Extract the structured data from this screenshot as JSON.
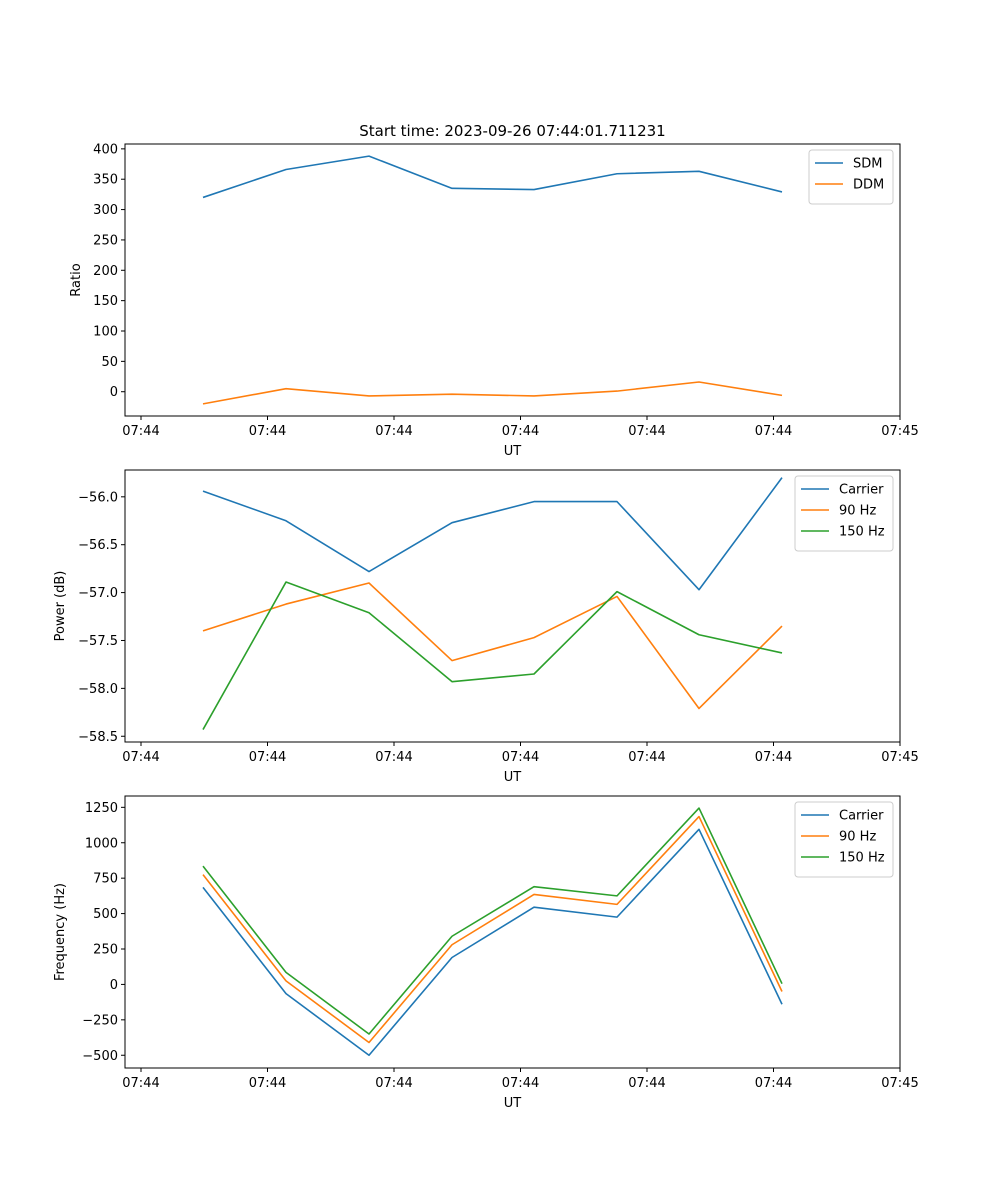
{
  "figure_title": "Start time: 2023-09-26 07:44:01.711231",
  "chart_data": [
    {
      "type": "line",
      "title": "Start time: 2023-09-26 07:44:01.711231",
      "xlabel": "UT",
      "ylabel": "Ratio",
      "x_tick_labels": [
        "07:44",
        "07:44",
        "07:44",
        "07:44",
        "07:44",
        "07:44",
        "07:45"
      ],
      "y_ticks": [
        0,
        50,
        100,
        150,
        200,
        250,
        300,
        350,
        400
      ],
      "y_tick_labels": [
        "0",
        "50",
        "100",
        "150",
        "200",
        "250",
        "300",
        "350",
        "400"
      ],
      "ylim": [
        -40,
        408
      ],
      "legend_position": "top-right",
      "series": [
        {
          "name": "SDM",
          "color": "#1f77b4",
          "values": [
            320,
            366,
            388,
            335,
            333,
            359,
            363,
            329
          ]
        },
        {
          "name": "DDM",
          "color": "#ff7f0e",
          "values": [
            -20,
            5,
            -7,
            -4,
            -7,
            1,
            16,
            -6
          ]
        }
      ]
    },
    {
      "type": "line",
      "title": "",
      "xlabel": "UT",
      "ylabel": "Power (dB)",
      "x_tick_labels": [
        "07:44",
        "07:44",
        "07:44",
        "07:44",
        "07:44",
        "07:44",
        "07:45"
      ],
      "y_ticks": [
        -58.5,
        -58.0,
        -57.5,
        -57.0,
        -56.5,
        -56.0
      ],
      "y_tick_labels": [
        "−58.5",
        "−58.0",
        "−57.5",
        "−57.0",
        "−56.5",
        "−56.0"
      ],
      "ylim": [
        -58.56,
        -55.72
      ],
      "legend_position": "top-right",
      "series": [
        {
          "name": "Carrier",
          "color": "#1f77b4",
          "values": [
            -55.94,
            -56.25,
            -56.78,
            -56.27,
            -56.05,
            -56.05,
            -56.97,
            -55.8
          ]
        },
        {
          "name": "90 Hz",
          "color": "#ff7f0e",
          "values": [
            -57.4,
            -57.12,
            -56.9,
            -57.71,
            -57.47,
            -57.04,
            -58.21,
            -57.35
          ]
        },
        {
          "name": "150 Hz",
          "color": "#2ca02c",
          "values": [
            -58.43,
            -56.89,
            -57.21,
            -57.93,
            -57.85,
            -56.99,
            -57.44,
            -57.63
          ]
        }
      ]
    },
    {
      "type": "line",
      "title": "",
      "xlabel": "UT",
      "ylabel": "Frequency (Hz)",
      "x_tick_labels": [
        "07:44",
        "07:44",
        "07:44",
        "07:44",
        "07:44",
        "07:44",
        "07:45"
      ],
      "y_ticks": [
        -500,
        -250,
        0,
        250,
        500,
        750,
        1000,
        1250
      ],
      "y_tick_labels": [
        "−500",
        "−250",
        "0",
        "250",
        "500",
        "750",
        "1000",
        "1250"
      ],
      "ylim": [
        -590,
        1330
      ],
      "legend_position": "top-right",
      "series": [
        {
          "name": "Carrier",
          "color": "#1f77b4",
          "values": [
            685,
            -65,
            -500,
            190,
            545,
            475,
            1095,
            -140
          ]
        },
        {
          "name": "90 Hz",
          "color": "#ff7f0e",
          "values": [
            775,
            25,
            -410,
            280,
            635,
            565,
            1185,
            -50
          ]
        },
        {
          "name": "150 Hz",
          "color": "#2ca02c",
          "values": [
            835,
            85,
            -350,
            340,
            690,
            625,
            1245,
            5
          ]
        }
      ]
    }
  ]
}
